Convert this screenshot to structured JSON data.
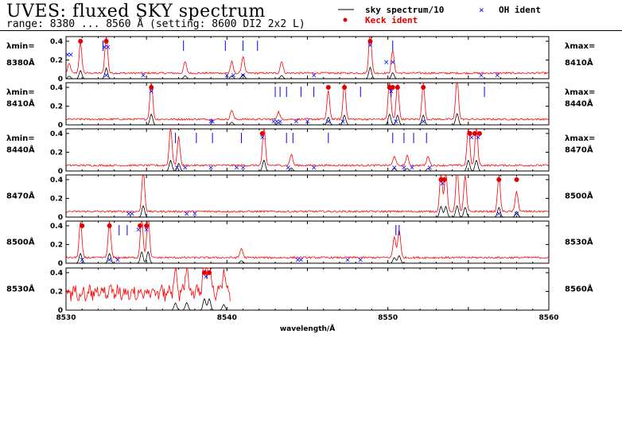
{
  "header": {
    "title": "UVES: fluxed SKY spectrum",
    "subtitle": "range: 8380 ... 8560 Å (setting: 8600 DI2 2x2 L)"
  },
  "legend": {
    "sky_label": "sky spectrum/10",
    "oh_label": "OH ident",
    "keck_label": "Keck ident",
    "colors": {
      "sky": "#000000",
      "flux": "#ff0000",
      "oh": "#0000ff",
      "keck": "#e00000"
    }
  },
  "labels": {
    "lambda_min": "λmin=",
    "lambda_max": "λmax=",
    "xlabel": "wavelength/Å"
  },
  "chart_data": {
    "type": "line",
    "xlabel": "wavelength/Å",
    "ylim": [
      0,
      0.45
    ],
    "yticks": [
      "0",
      "0.2",
      "0.4"
    ],
    "panels": [
      {
        "left_label": "8380Å",
        "right_label": "8410Å",
        "xlim": [
          8380,
          8410
        ],
        "peaks": [
          [
            8380.2,
            0.1
          ],
          [
            8380.9,
            0.32
          ],
          [
            8382.5,
            0.42
          ],
          [
            8387.4,
            0.12
          ],
          [
            8390.3,
            0.12
          ],
          [
            8391.0,
            0.18
          ],
          [
            8393.4,
            0.13
          ],
          [
            8398.9,
            0.45
          ],
          [
            8400.3,
            0.24
          ]
        ],
        "keck": [
          [
            8380.9,
            0.4
          ],
          [
            8382.5,
            0.4
          ],
          [
            8398.9,
            0.4
          ]
        ],
        "oh": [
          [
            8380.1,
            0.26
          ],
          [
            8380.3,
            0.26
          ],
          [
            8382.4,
            0.34
          ],
          [
            8382.6,
            0.34
          ],
          [
            8382.5,
            0.04
          ],
          [
            8384.8,
            0.04
          ],
          [
            8390.0,
            0.04
          ],
          [
            8390.4,
            0.04
          ],
          [
            8391.0,
            0.04
          ],
          [
            8395.4,
            0.04
          ],
          [
            8398.9,
            0.36
          ],
          [
            8399.9,
            0.18
          ],
          [
            8400.3,
            0.18
          ],
          [
            8405.8,
            0.04
          ],
          [
            8406.8,
            0.04
          ]
        ],
        "ticks": [
          8382.3,
          8387.3,
          8389.9,
          8391.0,
          8391.9,
          8400.3
        ]
      },
      {
        "left_label": "8410Å",
        "right_label": "8440Å",
        "xlim": [
          8410,
          8440
        ],
        "peaks": [
          [
            8415.3,
            0.42
          ],
          [
            8420.3,
            0.1
          ],
          [
            8423.2,
            0.08
          ],
          [
            8426.3,
            0.3
          ],
          [
            8427.3,
            0.38
          ],
          [
            8430.1,
            0.42
          ],
          [
            8430.6,
            0.38
          ],
          [
            8432.2,
            0.38
          ],
          [
            8434.3,
            0.44
          ]
        ],
        "keck": [
          [
            8415.3,
            0.4
          ],
          [
            8426.3,
            0.4
          ],
          [
            8427.3,
            0.4
          ],
          [
            8430.1,
            0.4
          ],
          [
            8430.3,
            0.4
          ],
          [
            8430.6,
            0.4
          ],
          [
            8432.2,
            0.4
          ]
        ],
        "oh": [
          [
            8415.3,
            0.36
          ],
          [
            8419.0,
            0.04
          ],
          [
            8419.1,
            0.04
          ],
          [
            8422.9,
            0.04
          ],
          [
            8423.1,
            0.04
          ],
          [
            8423.3,
            0.04
          ],
          [
            8424.3,
            0.04
          ],
          [
            8425.0,
            0.04
          ],
          [
            8426.3,
            0.04
          ],
          [
            8427.2,
            0.04
          ],
          [
            8430.2,
            0.36
          ],
          [
            8430.5,
            0.04
          ],
          [
            8432.2,
            0.04
          ]
        ],
        "ticks": [
          8423.0,
          8423.3,
          8423.7,
          8424.6,
          8425.4,
          8428.3,
          8430.2,
          8436.0
        ]
      },
      {
        "left_label": "8440Å",
        "right_label": "8470Å",
        "xlim": [
          8440,
          8470
        ],
        "peaks": [
          [
            8446.5,
            0.42
          ],
          [
            8447.0,
            0.3
          ],
          [
            8452.3,
            0.42
          ],
          [
            8454.0,
            0.12
          ],
          [
            8460.4,
            0.1
          ],
          [
            8461.2,
            0.1
          ],
          [
            8462.5,
            0.1
          ],
          [
            8465.0,
            0.42
          ],
          [
            8465.5,
            0.42
          ]
        ],
        "keck": [
          [
            8452.2,
            0.4
          ],
          [
            8465.1,
            0.4
          ],
          [
            8465.4,
            0.4
          ],
          [
            8465.7,
            0.4
          ]
        ],
        "oh": [
          [
            8446.9,
            0.04
          ],
          [
            8447.4,
            0.04
          ],
          [
            8449.0,
            0.04
          ],
          [
            8450.6,
            0.04
          ],
          [
            8451.0,
            0.04
          ],
          [
            8452.2,
            0.36
          ],
          [
            8453.8,
            0.04
          ],
          [
            8455.4,
            0.04
          ],
          [
            8460.4,
            0.04
          ],
          [
            8461.0,
            0.04
          ],
          [
            8461.5,
            0.04
          ],
          [
            8462.6,
            0.04
          ],
          [
            8465.2,
            0.36
          ],
          [
            8465.6,
            0.36
          ]
        ],
        "ticks": [
          8446.8,
          8448.1,
          8449.1,
          8450.9,
          8453.7,
          8454.1,
          8456.3,
          8460.3,
          8461.0,
          8461.6,
          8462.4
        ]
      },
      {
        "left_label": "8470Å",
        "right_label": "8500Å",
        "xlim": [
          8470,
          8500
        ],
        "peaks": [
          [
            8474.8,
            0.45
          ],
          [
            8493.3,
            0.42
          ],
          [
            8493.6,
            0.42
          ],
          [
            8494.3,
            0.45
          ],
          [
            8494.8,
            0.38
          ],
          [
            8496.9,
            0.38
          ],
          [
            8498.0,
            0.22
          ]
        ],
        "keck": [
          [
            8493.3,
            0.4
          ],
          [
            8493.5,
            0.4
          ],
          [
            8496.9,
            0.4
          ],
          [
            8498.0,
            0.4
          ]
        ],
        "oh": [
          [
            8473.9,
            0.04
          ],
          [
            8474.1,
            0.04
          ],
          [
            8477.5,
            0.04
          ],
          [
            8478.0,
            0.04
          ],
          [
            8493.4,
            0.36
          ],
          [
            8496.9,
            0.04
          ],
          [
            8498.0,
            0.04
          ]
        ],
        "ticks": []
      },
      {
        "left_label": "8500Å",
        "right_label": "8530Å",
        "xlim": [
          8500,
          8530
        ],
        "peaks": [
          [
            8500.9,
            0.38
          ],
          [
            8502.7,
            0.38
          ],
          [
            8504.7,
            0.45
          ],
          [
            8505.1,
            0.45
          ],
          [
            8510.9,
            0.1
          ],
          [
            8520.4,
            0.22
          ],
          [
            8520.7,
            0.3
          ]
        ],
        "keck": [
          [
            8501.0,
            0.4
          ],
          [
            8502.7,
            0.4
          ],
          [
            8504.6,
            0.4
          ],
          [
            8505.0,
            0.4
          ]
        ],
        "oh": [
          [
            8501.0,
            0.04
          ],
          [
            8502.7,
            0.04
          ],
          [
            8503.2,
            0.04
          ],
          [
            8504.5,
            0.36
          ],
          [
            8505.0,
            0.36
          ],
          [
            8514.4,
            0.04
          ],
          [
            8514.6,
            0.04
          ],
          [
            8517.5,
            0.04
          ],
          [
            8518.3,
            0.04
          ]
        ],
        "ticks": [
          8503.3,
          8503.8,
          8520.5,
          8520.7
        ]
      },
      {
        "left_label": "8530Å",
        "right_label": "8560Å",
        "xlim": [
          8530,
          8560
        ],
        "peaks": [
          [
            8538.6,
            0.45
          ],
          [
            8538.9,
            0.45
          ],
          [
            8537.5,
            0.3
          ],
          [
            8536.8,
            0.28
          ],
          [
            8539.8,
            0.22
          ]
        ],
        "keck": [
          [
            8538.6,
            0.4
          ],
          [
            8538.9,
            0.4
          ]
        ],
        "oh": [
          [
            8538.7,
            0.36
          ]
        ],
        "ticks": [],
        "data_end": 8540.2,
        "xticks": [
          "8530",
          "8540",
          "8550",
          "8560"
        ]
      }
    ]
  }
}
